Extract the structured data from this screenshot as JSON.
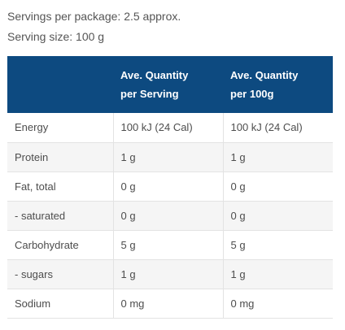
{
  "intro": {
    "servings_per_package": "Servings per package: 2.5 approx.",
    "serving_size": "Serving size: 100 g"
  },
  "table": {
    "headers": {
      "col1": "",
      "col2_line1": "Ave. Quantity",
      "col2_line2": "per Serving",
      "col3_line1": "Ave. Quantity",
      "col3_line2": "per 100g"
    },
    "rows": [
      {
        "nutrient": "Energy",
        "per_serving": "100 kJ (24 Cal)",
        "per_100g": "100 kJ (24 Cal)"
      },
      {
        "nutrient": "Protein",
        "per_serving": "1 g",
        "per_100g": "1 g"
      },
      {
        "nutrient": "Fat, total",
        "per_serving": "0 g",
        "per_100g": "0 g"
      },
      {
        "nutrient": "- saturated",
        "per_serving": "0 g",
        "per_100g": "0 g"
      },
      {
        "nutrient": "Carbohydrate",
        "per_serving": "5 g",
        "per_100g": "5 g"
      },
      {
        "nutrient": "- sugars",
        "per_serving": "1 g",
        "per_100g": "1 g"
      },
      {
        "nutrient": "Sodium",
        "per_serving": "0 mg",
        "per_100g": "0 mg"
      }
    ]
  },
  "colors": {
    "header_background": "#0d4a80",
    "header_text": "#ffffff",
    "row_alt_background": "#f5f5f5"
  }
}
